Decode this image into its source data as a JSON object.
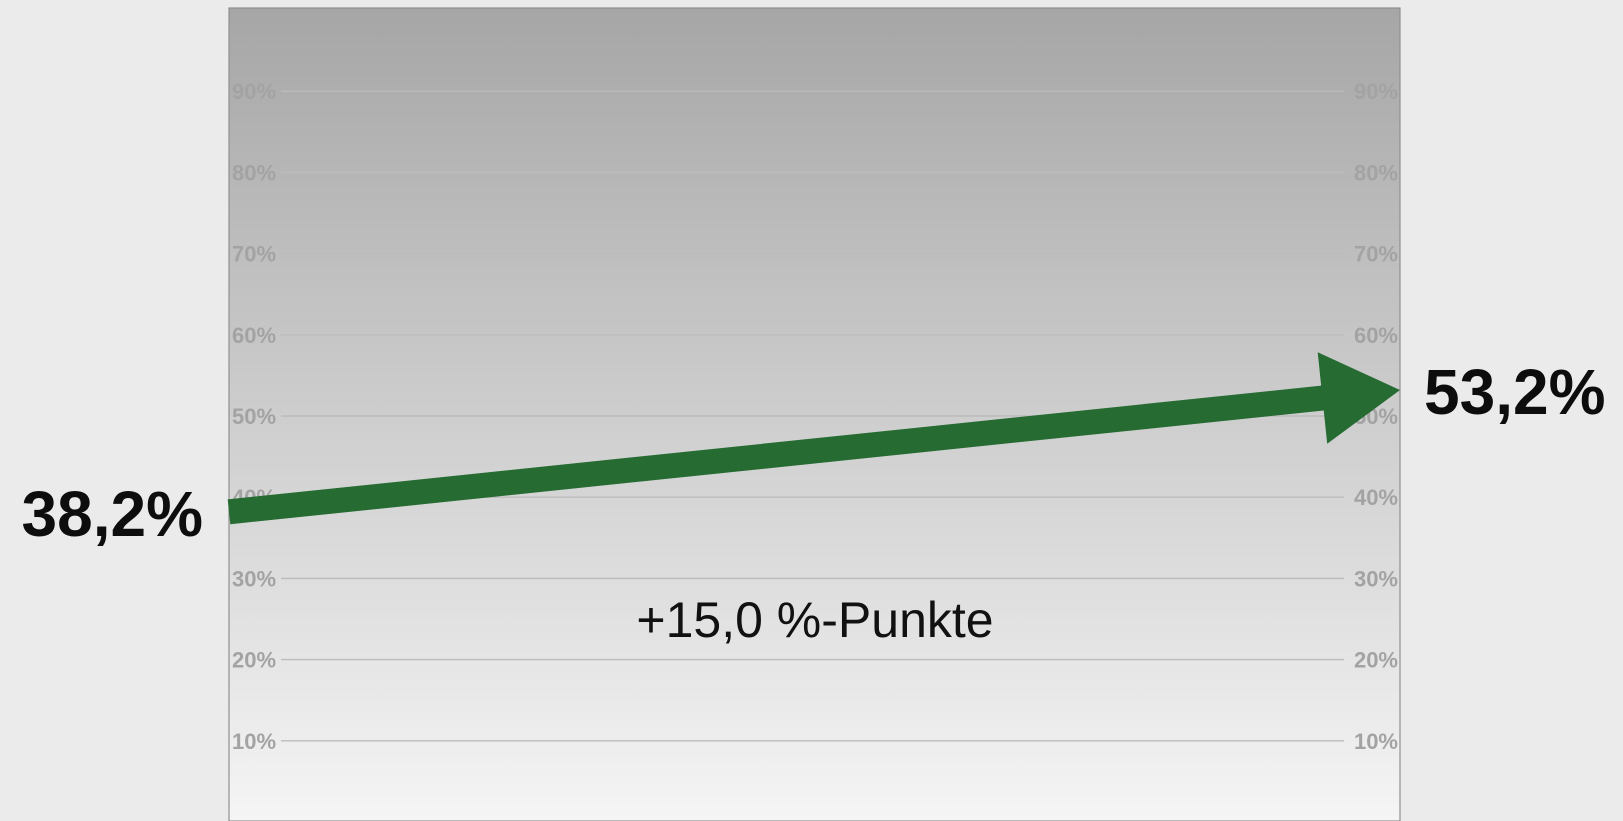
{
  "chart_data": {
    "type": "line",
    "x": [
      "start",
      "end"
    ],
    "series": [
      {
        "values": [
          38.2,
          53.2
        ],
        "labels": [
          "38,2%",
          "53,2%"
        ]
      }
    ],
    "ylim": [
      0,
      100
    ],
    "ticks": [
      10,
      20,
      30,
      40,
      50,
      60,
      70,
      80,
      90
    ],
    "tick_labels": [
      "10%",
      "20%",
      "30%",
      "40%",
      "50%",
      "60%",
      "70%",
      "80%",
      "90%"
    ],
    "annotation": "+15,0 %-Punkte",
    "grid": true,
    "axis_position": "left-and-right",
    "colors": {
      "arrow": "#256b32",
      "plot_top": "#a6a6a6",
      "plot_bottom": "#f5f5f5",
      "page_background": "#ebebeb",
      "tick_text": "#a3a3a3",
      "gridline": "#bcbcbc"
    }
  }
}
